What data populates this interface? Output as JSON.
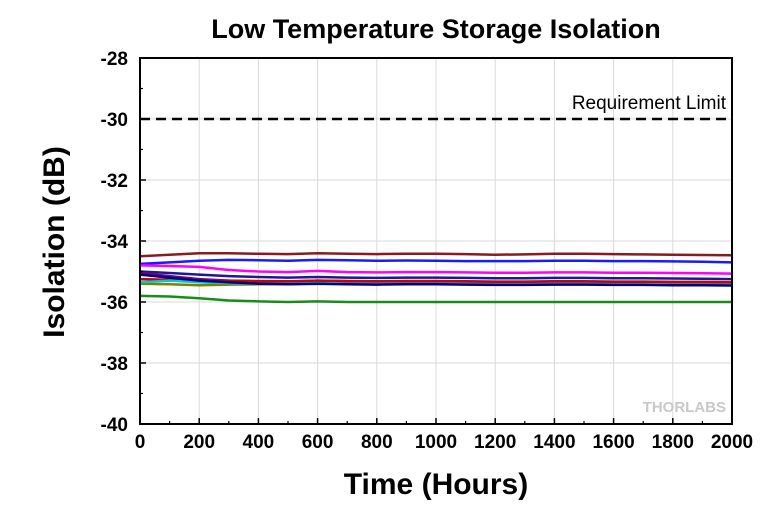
{
  "chart_data": {
    "type": "line",
    "title": "Low Temperature Storage Isolation",
    "xlabel": "Time (Hours)",
    "ylabel": "Isolation (dB)",
    "xlim": [
      0,
      2000
    ],
    "ylim": [
      -40,
      -28
    ],
    "xticks": [
      0,
      200,
      400,
      600,
      800,
      1000,
      1200,
      1400,
      1600,
      1800,
      2000
    ],
    "yticks": [
      -28,
      -30,
      -32,
      -34,
      -36,
      -38,
      -40
    ],
    "grid": true,
    "requirement_limit": {
      "label": "Requirement Limit",
      "value": -30,
      "color": "#000000"
    },
    "watermark": "THORLABS",
    "x": [
      0,
      100,
      200,
      300,
      400,
      500,
      600,
      700,
      800,
      900,
      1000,
      1100,
      1200,
      1300,
      1400,
      1500,
      1600,
      1700,
      1800,
      1900,
      2000
    ],
    "series": [
      {
        "color": "#8b1a1a",
        "values": [
          -34.5,
          -34.45,
          -34.4,
          -34.4,
          -34.42,
          -34.43,
          -34.4,
          -34.42,
          -34.43,
          -34.42,
          -34.42,
          -34.43,
          -34.45,
          -34.44,
          -34.42,
          -34.42,
          -34.43,
          -34.44,
          -34.45,
          -34.46,
          -34.47
        ]
      },
      {
        "color": "#1a1aff",
        "values": [
          -34.75,
          -34.7,
          -34.65,
          -34.62,
          -34.63,
          -34.65,
          -34.62,
          -34.63,
          -34.65,
          -34.64,
          -34.65,
          -34.66,
          -34.66,
          -34.66,
          -34.65,
          -34.65,
          -34.66,
          -34.66,
          -34.67,
          -34.68,
          -34.7
        ]
      },
      {
        "color": "#ff00ff",
        "values": [
          -34.8,
          -34.82,
          -34.85,
          -34.95,
          -35.0,
          -35.02,
          -34.98,
          -35.02,
          -35.03,
          -35.02,
          -35.02,
          -35.03,
          -35.04,
          -35.04,
          -35.03,
          -35.03,
          -35.04,
          -35.04,
          -35.05,
          -35.06,
          -35.07
        ]
      },
      {
        "color": "#1a1a99",
        "values": [
          -35.0,
          -35.05,
          -35.1,
          -35.15,
          -35.18,
          -35.2,
          -35.18,
          -35.2,
          -35.21,
          -35.2,
          -35.2,
          -35.21,
          -35.22,
          -35.22,
          -35.21,
          -35.21,
          -35.22,
          -35.22,
          -35.23,
          -35.24,
          -35.25
        ]
      },
      {
        "color": "#800080",
        "values": [
          -35.05,
          -35.15,
          -35.25,
          -35.3,
          -35.32,
          -35.33,
          -35.3,
          -35.32,
          -35.33,
          -35.32,
          -35.32,
          -35.33,
          -35.34,
          -35.34,
          -35.33,
          -35.33,
          -35.34,
          -35.34,
          -35.35,
          -35.35,
          -35.36
        ]
      },
      {
        "color": "#cc0000",
        "values": [
          -35.25,
          -35.27,
          -35.3,
          -35.3,
          -35.31,
          -35.32,
          -35.3,
          -35.31,
          -35.32,
          -35.31,
          -35.31,
          -35.32,
          -35.33,
          -35.33,
          -35.32,
          -35.32,
          -35.33,
          -35.33,
          -35.34,
          -35.34,
          -35.35
        ]
      },
      {
        "color": "#808000",
        "values": [
          -35.4,
          -35.42,
          -35.45,
          -35.43,
          -35.42,
          -35.41,
          -35.4,
          -35.41,
          -35.42,
          -35.41,
          -35.41,
          -35.42,
          -35.43,
          -35.43,
          -35.42,
          -35.42,
          -35.43,
          -35.43,
          -35.44,
          -35.44,
          -35.45
        ]
      },
      {
        "color": "#00cccc",
        "values": [
          -35.35,
          -35.3,
          -35.35,
          -35.38,
          -35.4,
          -35.4,
          -35.38,
          -35.4,
          -35.41,
          -35.4,
          -35.4,
          -35.41,
          -35.42,
          -35.42,
          -35.41,
          -35.41,
          -35.42,
          -35.42,
          -35.43,
          -35.43,
          -35.44
        ]
      },
      {
        "color": "#000080",
        "values": [
          -35.1,
          -35.2,
          -35.3,
          -35.35,
          -35.4,
          -35.42,
          -35.4,
          -35.42,
          -35.43,
          -35.42,
          -35.42,
          -35.43,
          -35.44,
          -35.44,
          -35.43,
          -35.43,
          -35.44,
          -35.44,
          -35.45,
          -35.45,
          -35.46
        ]
      },
      {
        "color": "#1a8c1a",
        "values": [
          -35.8,
          -35.82,
          -35.88,
          -35.95,
          -35.98,
          -36.0,
          -35.98,
          -36.0,
          -36.0,
          -36.0,
          -36.0,
          -36.0,
          -36.0,
          -36.0,
          -36.0,
          -36.0,
          -36.0,
          -36.0,
          -36.0,
          -36.0,
          -36.0
        ]
      }
    ]
  }
}
